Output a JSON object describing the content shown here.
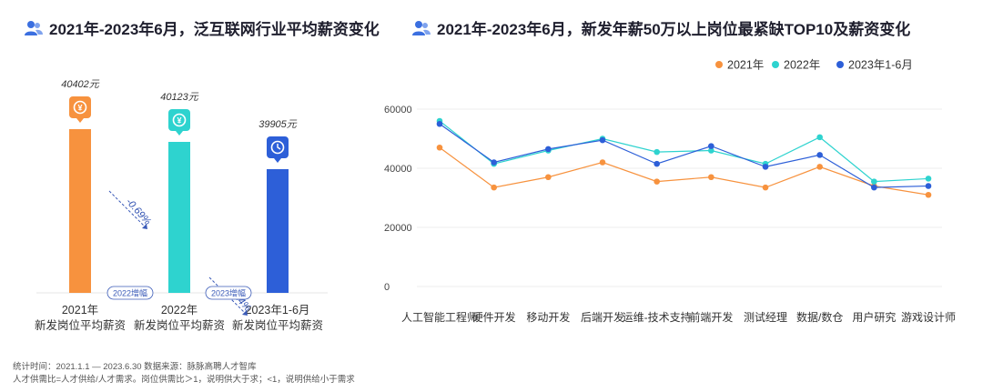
{
  "left_title": "2021年-2023年6月，泛互联网行业平均薪资变化",
  "right_title": "2021年-2023年6月，新发年薪50万以上岗位最紧缺TOP10及薪资变化",
  "footnote_line1": "统计时间：2021.1.1 — 2023.6.30   数据来源：脉脉高聘人才智库",
  "footnote_line2": "人才供需比=人才供给/人才需求。岗位供需比＞1，说明供大于求；<1，说明供给小于需求",
  "colors": {
    "orange": "#F7923E",
    "teal": "#2ED3CF",
    "blue": "#2D5FD8",
    "title_icon": "#3B6FE0"
  },
  "chart_data": [
    {
      "type": "bar",
      "categories": [
        "2021年\n新发岗位平均薪资",
        "2022年\n新发岗位平均薪资",
        "2023年1-6月\n新发岗位平均薪资"
      ],
      "category_lines": [
        [
          "2021年",
          "新发岗位平均薪资"
        ],
        [
          "2022年",
          "新发岗位平均薪资"
        ],
        [
          "2023年1-6月",
          "新发岗位平均薪资"
        ]
      ],
      "values": [
        40402,
        40123,
        39905
      ],
      "value_labels": [
        "40402元",
        "40123元",
        "39905元"
      ],
      "bar_colors": [
        "#F7923E",
        "#2ED3CF",
        "#2D5FD8"
      ],
      "icons": [
        "money-coin-icon",
        "yen-badge-icon",
        "clock-icon"
      ],
      "changes": [
        {
          "label": "-0.69%",
          "tag": "2022增幅"
        },
        {
          "label": "-0.54%",
          "tag": "2023增幅"
        }
      ],
      "title": "",
      "xlabel": "",
      "ylabel": ""
    },
    {
      "type": "line",
      "categories": [
        "人工智能工程师",
        "硬件开发",
        "移动开发",
        "后端开发",
        "运维-技术支持",
        "前端开发",
        "测试经理",
        "数据/数仓",
        "用户研究",
        "游戏设计师"
      ],
      "series": [
        {
          "name": "2021年",
          "color": "#F7923E",
          "values": [
            47000,
            33500,
            37000,
            42000,
            35500,
            37000,
            33500,
            40500,
            34000,
            31000
          ]
        },
        {
          "name": "2022年",
          "color": "#2ED3CF",
          "values": [
            56000,
            41500,
            46000,
            50000,
            45500,
            46000,
            41500,
            50500,
            35500,
            36500
          ]
        },
        {
          "name": "2023年1-6月",
          "color": "#2D5FD8",
          "values": [
            55000,
            42000,
            46500,
            49500,
            41500,
            47500,
            40500,
            44500,
            33500,
            34000
          ]
        }
      ],
      "yticks": [
        0,
        20000,
        40000,
        60000
      ],
      "ylim": [
        0,
        60000
      ],
      "grid": true,
      "legend": "top-right",
      "title": "",
      "xlabel": "",
      "ylabel": ""
    }
  ]
}
